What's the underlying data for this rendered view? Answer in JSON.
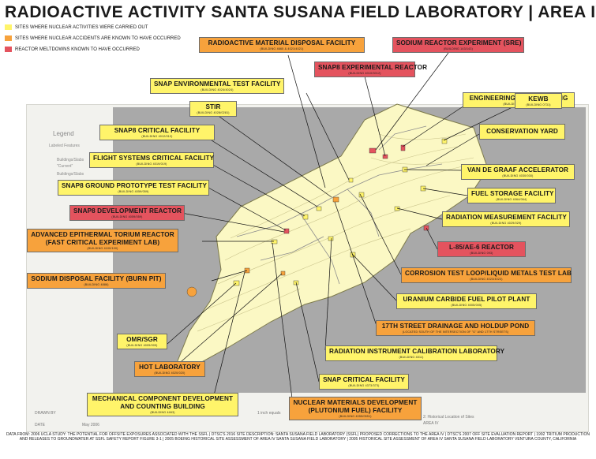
{
  "title": "RADIOACTIVE ACTIVITY SANTA SUSANA FIELD LABORATORY | AREA IV",
  "legend": [
    {
      "text": "SITES WHERE NUCLEAR ACTIVITIES WERE CARRIED OUT",
      "color": "#fff46a"
    },
    {
      "text": "SITES WHERE NUCLEAR ACCIDENTS ARE KNOWN TO HAVE OCCURRED",
      "color": "#f7a23c"
    },
    {
      "text": "REACTOR MELTDOWNS KNOWN TO HAVE OCCURRED",
      "color": "#e4535e"
    }
  ],
  "labels": {
    "radioactive_disposal": {
      "name": "RADIOACTIVE MATERIAL DISPOSAL FACILITY",
      "sub": "(BUILDING 4665 & 4021/4021)",
      "category": "accident"
    },
    "sre": {
      "name": "SODIUM REACTOR EXPERIMENT (SRE)",
      "sub": "(BUILDING 143/143)",
      "category": "meltdown"
    },
    "snap8_exp": {
      "name": "SNAP8 EXPERIMENTAL REACTOR",
      "sub": "(BUILDING 4010/3012)",
      "category": "meltdown"
    },
    "snap_env": {
      "name": "SNAP ENVIRONMENTAL TEST FACILITY",
      "sub": "(BUILDING 4024/4024)",
      "category": "activity"
    },
    "engineering": {
      "name": "ENGINEERING TEST BUILDING",
      "sub": "(BUILDING 4003/003)",
      "category": "activity"
    },
    "stir": {
      "name": "STIR",
      "sub": "(BUILDING 4028/0281)",
      "category": "activity"
    },
    "kewb": {
      "name": "KEWB",
      "sub": "(BUILDING 0731)",
      "category": "activity"
    },
    "snap8_crit": {
      "name": "SNAP8 CRITICAL FACILITY",
      "sub": "(BUILDING 4012/012)",
      "category": "activity"
    },
    "conservation": {
      "name": "CONSERVATION YARD",
      "sub": "",
      "category": "activity"
    },
    "flight": {
      "name": "FLIGHT SYSTEMS CRITICAL FACILITY",
      "sub": "(BUILDING 4019/019)",
      "category": "activity"
    },
    "van_de_graaf": {
      "name": "VAN DE GRAAF ACCELERATOR",
      "sub": "(BUILDING 4030/030)",
      "category": "activity"
    },
    "snap8_ground": {
      "name": "SNAP8 GROUND PROTOTYPE TEST FACILITY",
      "sub": "(BUILDING 4059/059)",
      "category": "activity"
    },
    "fuel_storage": {
      "name": "FUEL STORAGE FACILITY",
      "sub": "(BUILDING 4064/064)",
      "category": "activity"
    },
    "snap8_dev": {
      "name": "SNAP8 DEVELOPMENT REACTOR",
      "sub": "(BUILDING 4059/059)",
      "category": "meltdown"
    },
    "radiation_meas": {
      "name": "RADIATION MEASUREMENT FACILITY",
      "sub": "(BUILDING 4029/029)",
      "category": "activity"
    },
    "aetr_line1": {
      "name": "ADVANCED EPITHERMAL TORIUM REACTOR",
      "sub": "",
      "category": "accident"
    },
    "aetr_line2": {
      "name": "(FAST CRITICAL EXPERIMENT LAB)",
      "sub": "(BUILDING 4100/100)",
      "category": "accident"
    },
    "l85": {
      "name": "L-85/AE-6 REACTOR",
      "sub": "(BUILDING 093)",
      "category": "meltdown"
    },
    "corrosion": {
      "name": "CORROSION TEST LOOP/LIQUID METALS TEST LAB",
      "sub": "(BUILDING 4023/4023)",
      "category": "accident"
    },
    "sodium_disposal": {
      "name": "SODIUM DISPOSAL FACILITY (BURN PIT)",
      "sub": "(BUILDING 4886)",
      "category": "accident"
    },
    "uranium": {
      "name": "URANIUM CARBIDE FUEL PILOT PLANT",
      "sub": "(BUILDING 4005/005)",
      "category": "activity"
    },
    "drainage": {
      "name": "17TH STREET DRAINAGE AND HOLDUP POND",
      "sub": "(LOCATED SOUTH OF THE INTERSECTION OF \"G\" AND 17TH STREETS)",
      "category": "accident"
    },
    "omr": {
      "name": "OMR/SGR",
      "sub": "(BUILDING 4009/009)",
      "category": "activity"
    },
    "rad_instr": {
      "name": "RADIATION INSTRUMENT CALIBRATION LABORATORY",
      "sub": "(BUILDING 4011)",
      "category": "activity"
    },
    "hot_lab": {
      "name": "HOT LABORATORY",
      "sub": "(BUILDING 4020/020)",
      "category": "accident"
    },
    "snap_crit": {
      "name": "SNAP CRITICAL FACILITY",
      "sub": "(BUILDING 4373/373)",
      "category": "activity"
    },
    "mech_line1": {
      "name": "MECHANICAL COMPONENT DEVELOPMENT",
      "sub": "",
      "category": "activity"
    },
    "mech_line2": {
      "name": "AND COUNTING BUILDING",
      "sub": "(BUILDING 4463)",
      "category": "activity"
    },
    "nuclear_line1": {
      "name": "NUCLEAR MATERIALS DEVELOPMENT",
      "sub": "",
      "category": "accident"
    },
    "nuclear_line2": {
      "name": "(PLUTONIUM FUEL) FACILITY",
      "sub": "(BUILDING 4055/0551)",
      "category": "accident"
    }
  },
  "map_text": {
    "legend_heading": "Legend",
    "legend_sub": "Labeled Features",
    "buildings": "Buildings/Slabs",
    "current": "\"Current\"",
    "buildings2": "Buildings/Slabs",
    "drawn_by": "DRAWN BY",
    "date": "DATE",
    "date_value": "May 2006",
    "scale": "1 inch equals",
    "fig_caption": "2: Historical Location of Sites",
    "area": "AREA IV"
  },
  "sources": "DATA FROM: 2006 UCLA STUDY: THE POTENTIAL FOR OFFSITE EXPOSURES ASSOCIATED WITH THE SSFL | DTSC'S 2016 SITE DESCRIPTION: SANTA SUSANA FIELD LABORATORY (SSFL) PROPOSED CORRECTIONS TO THE AREA IV | DTSC'S 2007 OFF SITE EVALUATION REPORT | 1992 TRITIUM PRODUCTION AND RELEASES TO GROUNDWATER AT SSFL SAFETY REPORT FIGURE 3-1 | 2005 BOEING HISTORICAL SITE ASSESSMENT OF AREA IV SANTA SUSANA FIELD LABORATORY | 2005 HISTORICAL SITE ASSESSMENT OF AREA IV SANTA SUSANA FIELD LABORATORY VENTURA COUNTY, CALIFORNIA",
  "colors": {
    "activity": "#fff46a",
    "accident": "#f7a23c",
    "meltdown": "#e4535e",
    "map_fill": "#fbf8c4",
    "outside": "#a9a9a9"
  }
}
